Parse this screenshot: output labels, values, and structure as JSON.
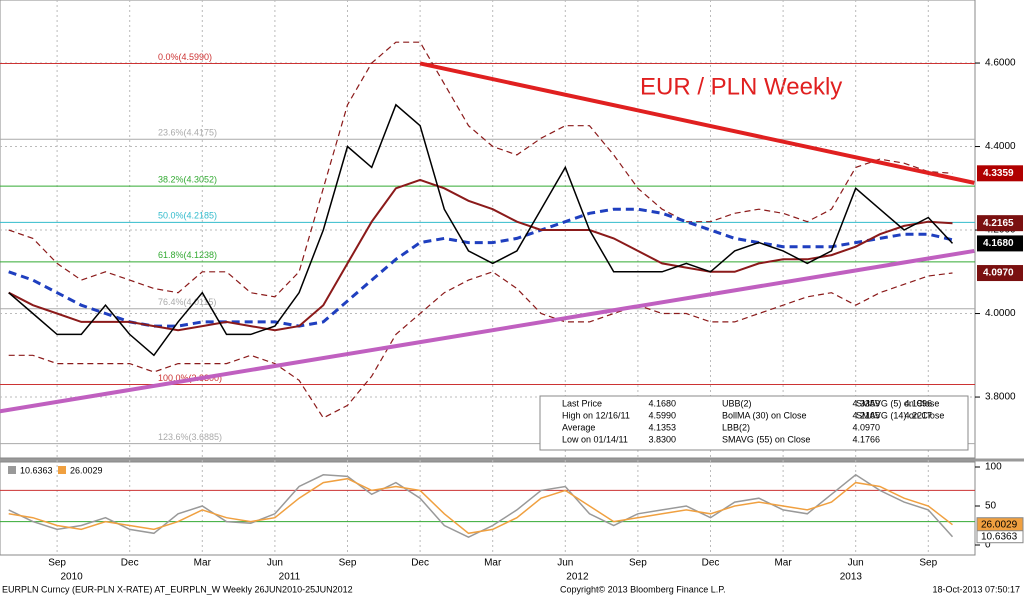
{
  "chart_data": {
    "type": "line",
    "title": "EUR / PLN Weekly",
    "categories": [
      null,
      null,
      "Sep",
      null,
      null,
      "Dec",
      null,
      null,
      "Mar",
      null,
      null,
      "Jun",
      null,
      null,
      "Sep",
      null,
      null,
      "Dec",
      null,
      null,
      "Mar",
      null,
      null,
      "Jun",
      null,
      null,
      "Sep",
      null,
      null,
      "Dec",
      null,
      null,
      "Mar",
      null,
      null,
      "Jun",
      null,
      null,
      "Sep",
      null
    ],
    "years": [
      {
        "label": "2010",
        "index": 2.6
      },
      {
        "label": "2011",
        "index": 11.6
      },
      {
        "label": "2012",
        "index": 23.5
      },
      {
        "label": "2013",
        "index": 34.8
      }
    ],
    "ylim": [
      3.654,
      4.751
    ],
    "yticks": [
      {
        "value": 4.6,
        "label": "4.6000"
      },
      {
        "value": 4.4,
        "label": "4.4000"
      },
      {
        "value": 4.2,
        "label": "4.2000"
      },
      {
        "value": 4.0,
        "label": "4.0000"
      },
      {
        "value": 3.8,
        "label": "3.8000"
      }
    ],
    "grid": true,
    "series": [
      {
        "name": "Last Price",
        "color": "#000000",
        "width": 1.5,
        "dash": "",
        "values": [
          4.05,
          4.0,
          3.95,
          3.95,
          4.02,
          3.95,
          3.9,
          3.98,
          4.05,
          3.95,
          3.95,
          3.97,
          4.05,
          4.2,
          4.4,
          4.35,
          4.5,
          4.45,
          4.25,
          4.15,
          4.12,
          4.15,
          4.25,
          4.35,
          4.2,
          4.1,
          4.1,
          4.1,
          4.12,
          4.1,
          4.15,
          4.17,
          4.15,
          4.12,
          4.15,
          4.3,
          4.25,
          4.2,
          4.23,
          4.168
        ]
      },
      {
        "name": "BollMA (30) on Close",
        "color": "#8b1a1a",
        "width": 2,
        "dash": "",
        "values": [
          4.05,
          4.02,
          4.0,
          3.98,
          3.98,
          3.98,
          3.97,
          3.96,
          3.97,
          3.98,
          3.97,
          3.96,
          3.97,
          4.02,
          4.12,
          4.22,
          4.3,
          4.32,
          4.3,
          4.27,
          4.25,
          4.22,
          4.2,
          4.2,
          4.2,
          4.18,
          4.15,
          4.12,
          4.11,
          4.1,
          4.1,
          4.12,
          4.13,
          4.13,
          4.14,
          4.16,
          4.19,
          4.21,
          4.22,
          4.2165
        ]
      },
      {
        "name": "SMAVG (55) on Close",
        "color": "#1f3fbf",
        "width": 3,
        "dash": "8 5",
        "values": [
          4.1,
          4.08,
          4.05,
          4.02,
          4.0,
          3.98,
          3.97,
          3.97,
          3.98,
          3.98,
          3.98,
          3.98,
          3.97,
          3.98,
          4.03,
          4.08,
          4.13,
          4.17,
          4.18,
          4.17,
          4.17,
          4.18,
          4.2,
          4.22,
          4.24,
          4.25,
          4.25,
          4.24,
          4.22,
          4.2,
          4.18,
          4.17,
          4.16,
          4.16,
          4.16,
          4.17,
          4.18,
          4.19,
          4.19,
          4.1766
        ]
      },
      {
        "name": "UBB(2)",
        "color": "#8b1a1a",
        "width": 1.2,
        "dash": "6 4",
        "values": [
          4.2,
          4.18,
          4.12,
          4.08,
          4.1,
          4.08,
          4.06,
          4.05,
          4.1,
          4.1,
          4.05,
          4.04,
          4.1,
          4.3,
          4.5,
          4.6,
          4.65,
          4.65,
          4.55,
          4.45,
          4.4,
          4.38,
          4.42,
          4.45,
          4.45,
          4.38,
          4.3,
          4.25,
          4.22,
          4.22,
          4.24,
          4.25,
          4.24,
          4.22,
          4.25,
          4.35,
          4.37,
          4.36,
          4.34,
          4.3359
        ]
      },
      {
        "name": "LBB(2)",
        "color": "#8b1a1a",
        "width": 1.2,
        "dash": "6 4",
        "values": [
          3.9,
          3.9,
          3.88,
          3.88,
          3.88,
          3.88,
          3.86,
          3.88,
          3.88,
          3.88,
          3.9,
          3.88,
          3.84,
          3.75,
          3.78,
          3.85,
          3.95,
          4.0,
          4.05,
          4.08,
          4.1,
          4.06,
          4.0,
          3.98,
          3.98,
          4.0,
          4.02,
          4.0,
          4.0,
          3.98,
          3.98,
          4.0,
          4.02,
          4.04,
          4.05,
          4.02,
          4.05,
          4.07,
          4.09,
          4.097
        ]
      }
    ],
    "fib_levels": [
      {
        "label": "0.0%(4.5990)",
        "value": 4.599,
        "color": "#cc3333"
      },
      {
        "label": "23.6%(4.4175)",
        "value": 4.4175,
        "color": "#aaaaaa"
      },
      {
        "label": "38.2%(4.3052)",
        "value": 4.3052,
        "color": "#33aa33"
      },
      {
        "label": "50.0%(4.2185)",
        "value": 4.2185,
        "color": "#33bbcc"
      },
      {
        "label": "61.8%(4.1238)",
        "value": 4.1238,
        "color": "#33aa33"
      },
      {
        "label": "76.4%(4.0115)",
        "value": 4.0115,
        "color": "#aaaaaa"
      },
      {
        "label": "100.0%(3.8300)",
        "value": 3.83,
        "color": "#cc3333"
      },
      {
        "label": "123.6%(3.6885)",
        "value": 3.6885,
        "color": "#aaaaaa"
      }
    ],
    "trendlines": [
      {
        "color": "#e02020",
        "from": [
          17,
          4.599
        ],
        "to": [
          39.9,
          4.313
        ]
      },
      {
        "color": "#c060c0",
        "from": [
          -0.36,
          3.766
        ],
        "to": [
          39.9,
          4.15
        ]
      }
    ],
    "price_tags": [
      {
        "value": 4.3359,
        "label": "4.3359",
        "color": "#b00000"
      },
      {
        "value": 4.2165,
        "label": "4.2165",
        "color": "#7a1010"
      },
      {
        "value": 4.168,
        "label": "4.1680",
        "color": "#000000"
      },
      {
        "value": 4.097,
        "label": "4.0970",
        "color": "#7a1010"
      }
    ],
    "legend": [
      [
        "Last Price",
        "4.1680",
        "UBB(2)",
        "4.3359",
        "SMAVG (5) on Close",
        "4.1996"
      ],
      [
        "High on 12/16/11",
        "4.5990",
        "BollMA (30) on Close",
        "4.2165",
        "SMAVG (14) on Close",
        "4.2217"
      ],
      [
        "Average",
        "4.1353",
        "LBB(2)",
        "4.0970",
        "",
        ""
      ],
      [
        "Low on 01/14/11",
        "3.8300",
        "SMAVG (55) on Close",
        "4.1766",
        "",
        ""
      ]
    ],
    "lower": {
      "ylim": [
        -12.8,
        106.4
      ],
      "yticks": [
        100,
        50,
        0
      ],
      "levels": [
        70,
        30
      ],
      "series": [
        {
          "name": "10.6363",
          "color": "#999999",
          "values": [
            45,
            30,
            20,
            25,
            35,
            20,
            15,
            40,
            50,
            30,
            28,
            40,
            75,
            90,
            88,
            65,
            80,
            60,
            25,
            10,
            25,
            45,
            70,
            75,
            40,
            25,
            40,
            45,
            50,
            35,
            55,
            60,
            45,
            40,
            65,
            90,
            70,
            55,
            45,
            10.6363
          ]
        },
        {
          "name": "26.0029",
          "color": "#f0a040",
          "values": [
            40,
            35,
            25,
            20,
            30,
            25,
            20,
            30,
            45,
            35,
            30,
            35,
            60,
            80,
            85,
            70,
            75,
            70,
            40,
            15,
            20,
            35,
            60,
            70,
            50,
            30,
            35,
            40,
            45,
            40,
            50,
            55,
            50,
            45,
            55,
            80,
            75,
            60,
            50,
            26.0029
          ]
        }
      ]
    },
    "footer": [
      "EURPLN Curncy (EUR-PLN X-RATE) AT_EURPLN_W  Weekly 26JUN2010-25JUN2012",
      "Copyright© 2013 Bloomberg Finance L.P.",
      "18-Oct-2013 07:50:17"
    ]
  }
}
